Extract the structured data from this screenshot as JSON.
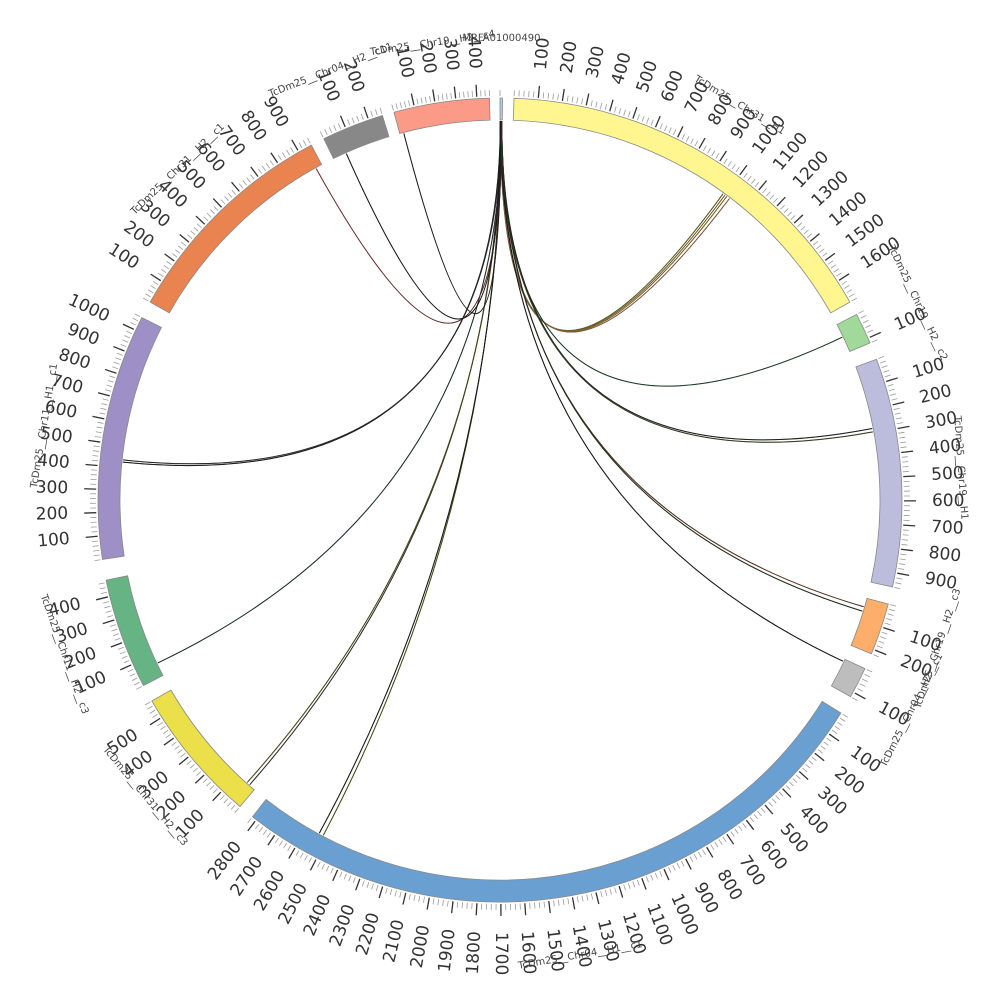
{
  "chart_data": {
    "type": "chord",
    "tick_unit": 100,
    "segments": [
      {
        "name": "MRFA01000490",
        "length": 3,
        "color": "#a6cee3",
        "angle_start": 0.0,
        "angle_end": 0.35,
        "ticks": []
      },
      {
        "name": "TcDm25__Chr31__H1",
        "length": 1700,
        "color": "#fff68f",
        "angle_start": 2.0,
        "angle_end": 60.5,
        "ticks": [
          100,
          200,
          300,
          400,
          500,
          600,
          700,
          800,
          900,
          1000,
          1100,
          1200,
          1300,
          1400,
          1500,
          1600
        ]
      },
      {
        "name": "TcDm25__Chr19__H2__c2",
        "length": 120,
        "color": "#a1d99b",
        "angle_start": 62.5,
        "angle_end": 67.0,
        "ticks": [
          100
        ]
      },
      {
        "name": "TcDm25__Chr19__H1",
        "length": 960,
        "color": "#bcbddc",
        "angle_start": 69.5,
        "angle_end": 102.5,
        "ticks": [
          100,
          200,
          300,
          400,
          500,
          600,
          700,
          800,
          900
        ]
      },
      {
        "name": "TcDm25__Chr19__H2__c3",
        "length": 220,
        "color": "#fdae6b",
        "angle_start": 105.0,
        "angle_end": 112.5,
        "ticks": [
          100,
          200
        ]
      },
      {
        "name": "TcDm25__Chr04__H2__c1",
        "length": 120,
        "color": "#bdbdbd",
        "angle_start": 114.8,
        "angle_end": 119.3,
        "ticks": [
          100
        ]
      },
      {
        "name": "TcDm25__Chr04__H1__c1",
        "length": 2820,
        "color": "#6a9fd2",
        "angle_start": 122.0,
        "angle_end": 218.0,
        "ticks": [
          100,
          200,
          300,
          400,
          500,
          600,
          700,
          800,
          900,
          1000,
          1100,
          1200,
          1300,
          1400,
          1500,
          1600,
          1700,
          1800,
          1900,
          2000,
          2100,
          2200,
          2300,
          2400,
          2500,
          2600,
          2700,
          2800
        ]
      },
      {
        "name": "TcDm25__Chr31__H2__c3",
        "length": 580,
        "color": "#ebdf4a",
        "angle_start": 220.3,
        "angle_end": 240.0,
        "ticks": [
          100,
          200,
          300,
          400,
          500
        ]
      },
      {
        "name": "TcDm25__Chr11__H2__c3",
        "length": 470,
        "color": "#66b383",
        "angle_start": 242.5,
        "angle_end": 258.5,
        "ticks": [
          100,
          200,
          300,
          400
        ]
      },
      {
        "name": "TcDm25__Chr11__H1__c1",
        "length": 1060,
        "color": "#9e8fc7",
        "angle_start": 261.5,
        "angle_end": 297.0,
        "ticks": [
          100,
          200,
          300,
          400,
          500,
          600,
          700,
          800,
          900,
          1000
        ]
      },
      {
        "name": "TcDm25__Chr31__H2__c1",
        "length": 960,
        "color": "#e98350",
        "angle_start": 299.5,
        "angle_end": 332.0,
        "ticks": [
          100,
          200,
          300,
          400,
          500,
          600,
          700,
          800,
          900
        ]
      },
      {
        "name": "TcDm25__Chr04__H2__c11",
        "length": 260,
        "color": "#888888",
        "angle_start": 334.0,
        "angle_end": 343.0,
        "ticks": [
          100,
          200
        ]
      },
      {
        "name": "TcDm25__Chr19__H2__c4",
        "length": 460,
        "color": "#fb9a86",
        "angle_start": 344.7,
        "angle_end": 358.5,
        "ticks": [
          100,
          200,
          300,
          400
        ]
      }
    ],
    "links": [
      {
        "target": "TcDm25__Chr31__H1",
        "position": 990,
        "color": "#8db33e"
      },
      {
        "target": "TcDm25__Chr31__H1",
        "position": 1000,
        "color": "#f0a040"
      },
      {
        "target": "TcDm25__Chr31__H1",
        "position": 1010,
        "color": "#d8c23a"
      },
      {
        "target": "TcDm25__Chr31__H1",
        "position": 1025,
        "color": "#f6a67a"
      },
      {
        "target": "TcDm25__Chr19__H2__c2",
        "position": 55,
        "color": "#2d6e3a"
      },
      {
        "target": "TcDm25__Chr19__H1",
        "position": 280,
        "color": "#333333"
      },
      {
        "target": "TcDm25__Chr19__H1",
        "position": 295,
        "color": "#556b2f"
      },
      {
        "target": "TcDm25__Chr19__H2__c3",
        "position": 40,
        "color": "#a0522d"
      },
      {
        "target": "TcDm25__Chr19__H2__c3",
        "position": 60,
        "color": "#2f4f2f"
      },
      {
        "target": "TcDm25__Chr04__H2__c1",
        "position": 10,
        "color": "#222222"
      },
      {
        "target": "TcDm25__Chr04__H1__c1",
        "position": 2520,
        "color": "#7b8c1f"
      },
      {
        "target": "TcDm25__Chr04__H1__c1",
        "position": 2540,
        "color": "#222222"
      },
      {
        "target": "TcDm25__Chr31__H2__c3",
        "position": 30,
        "color": "#555555"
      },
      {
        "target": "TcDm25__Chr31__H2__c3",
        "position": 45,
        "color": "#8a7f20"
      },
      {
        "target": "TcDm25__Chr11__H2__c3",
        "position": 60,
        "color": "#2f4f4f"
      },
      {
        "target": "TcDm25__Chr11__H1__c1",
        "position": 425,
        "color": "#222222"
      },
      {
        "target": "TcDm25__Chr11__H1__c1",
        "position": 435,
        "color": "#444444"
      },
      {
        "target": "TcDm25__Chr31__H2__c1",
        "position": 930,
        "color": "#c0504d"
      },
      {
        "target": "TcDm25__Chr04__H2__c11",
        "position": 60,
        "color": "#222222"
      },
      {
        "target": "TcDm25__Chr19__H2__c4",
        "position": 20,
        "color": "#333333"
      }
    ]
  }
}
